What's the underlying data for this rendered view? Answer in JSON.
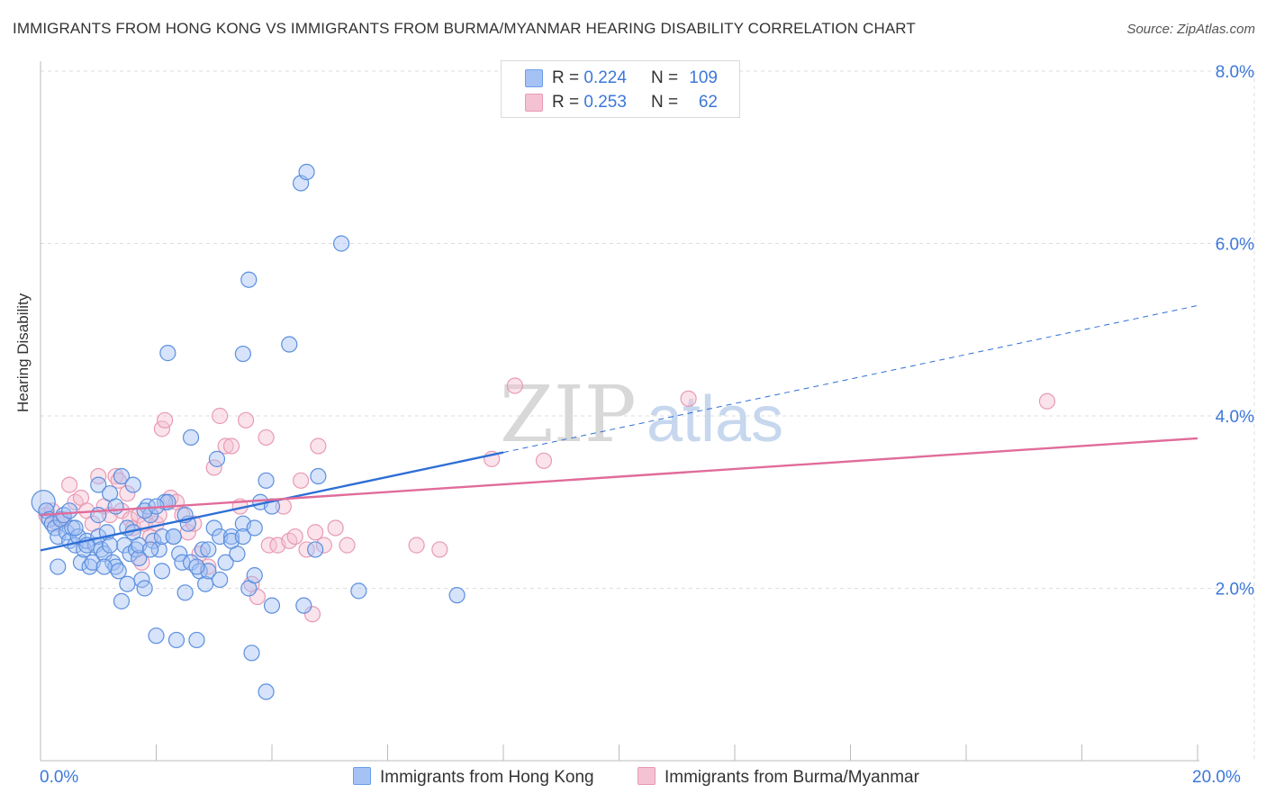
{
  "title": "IMMIGRANTS FROM HONG KONG VS IMMIGRANTS FROM BURMA/MYANMAR HEARING DISABILITY CORRELATION CHART",
  "source": "Source: ZipAtlas.com",
  "watermark": {
    "zip": "ZIP",
    "atlas": "atlas"
  },
  "colors": {
    "blue": "#3c78d8",
    "blue_fill": "#a4c2f4",
    "pink": "#e06c9a",
    "pink_fill": "#f4b4c8",
    "grid": "#dddddd",
    "axis_text": "#3c78d8"
  },
  "legend": {
    "rows": [
      {
        "r_label": "R =",
        "r_value": "0.224",
        "n_label": "N =",
        "n_value": "109"
      },
      {
        "r_label": "R =",
        "r_value": "0.253",
        "n_label": "N =",
        "n_value": "62"
      }
    ]
  },
  "bottom_legend": {
    "series1": "Immigrants from Hong Kong",
    "series2": "Immigrants from Burma/Myanmar"
  },
  "chart_data": {
    "type": "scatter",
    "ylabel": "Hearing Disability",
    "xlabel": "",
    "xlim": [
      0,
      20
    ],
    "ylim": [
      0,
      8.0
    ],
    "x_tick_labels": [
      "0.0%",
      "20.0%"
    ],
    "y_ticks": [
      2,
      4,
      6,
      8
    ],
    "y_tick_labels": [
      "2.0%",
      "4.0%",
      "6.0%",
      "8.0%"
    ],
    "grid": true,
    "legend_position": "top-center",
    "series": [
      {
        "name": "Immigrants from Hong Kong",
        "color": "#3c78d8",
        "trend": {
          "x0": 0,
          "y0": 2.44,
          "x_solid_end": 8.0,
          "x1": 20,
          "y1": 5.28
        },
        "points": [
          [
            0.05,
            3.0
          ],
          [
            0.1,
            2.9
          ],
          [
            0.15,
            2.8
          ],
          [
            0.2,
            2.75
          ],
          [
            0.25,
            2.7
          ],
          [
            0.3,
            2.6
          ],
          [
            0.35,
            2.8
          ],
          [
            0.4,
            2.85
          ],
          [
            0.45,
            2.65
          ],
          [
            0.5,
            2.55
          ],
          [
            0.55,
            2.7
          ],
          [
            0.6,
            2.5
          ],
          [
            0.65,
            2.6
          ],
          [
            0.7,
            2.3
          ],
          [
            0.75,
            2.45
          ],
          [
            0.8,
            2.55
          ],
          [
            0.85,
            2.25
          ],
          [
            0.9,
            2.3
          ],
          [
            0.95,
            2.5
          ],
          [
            1.0,
            2.6
          ],
          [
            1.05,
            2.45
          ],
          [
            1.1,
            2.4
          ],
          [
            1.15,
            2.65
          ],
          [
            1.2,
            2.5
          ],
          [
            1.25,
            2.3
          ],
          [
            1.3,
            2.25
          ],
          [
            1.35,
            2.2
          ],
          [
            1.4,
            1.85
          ],
          [
            1.45,
            2.5
          ],
          [
            1.5,
            2.7
          ],
          [
            1.55,
            2.4
          ],
          [
            1.6,
            2.65
          ],
          [
            1.65,
            2.45
          ],
          [
            1.7,
            2.35
          ],
          [
            1.75,
            2.1
          ],
          [
            1.8,
            2.0
          ],
          [
            1.85,
            2.95
          ],
          [
            1.9,
            2.85
          ],
          [
            1.95,
            2.55
          ],
          [
            2.0,
            1.45
          ],
          [
            2.05,
            2.45
          ],
          [
            2.1,
            2.6
          ],
          [
            2.15,
            3.0
          ],
          [
            2.2,
            3.0
          ],
          [
            2.3,
            2.6
          ],
          [
            2.35,
            1.4
          ],
          [
            2.4,
            2.4
          ],
          [
            2.45,
            2.3
          ],
          [
            2.5,
            1.95
          ],
          [
            2.55,
            2.75
          ],
          [
            2.6,
            2.3
          ],
          [
            2.7,
            1.4
          ],
          [
            2.75,
            2.2
          ],
          [
            2.8,
            2.45
          ],
          [
            2.85,
            2.05
          ],
          [
            2.9,
            2.2
          ],
          [
            3.0,
            2.7
          ],
          [
            3.1,
            2.6
          ],
          [
            3.2,
            2.3
          ],
          [
            3.3,
            2.6
          ],
          [
            3.4,
            2.4
          ],
          [
            3.5,
            2.75
          ],
          [
            3.6,
            2.0
          ],
          [
            3.7,
            2.15
          ],
          [
            3.8,
            3.0
          ],
          [
            3.9,
            3.25
          ],
          [
            4.0,
            1.8
          ],
          [
            1.0,
            3.2
          ],
          [
            1.2,
            3.1
          ],
          [
            1.4,
            3.3
          ],
          [
            1.6,
            3.2
          ],
          [
            1.8,
            2.9
          ],
          [
            2.0,
            2.95
          ],
          [
            2.2,
            4.73
          ],
          [
            2.6,
            3.75
          ],
          [
            3.05,
            3.5
          ],
          [
            3.5,
            4.72
          ],
          [
            3.6,
            5.58
          ],
          [
            4.3,
            4.83
          ],
          [
            4.5,
            6.7
          ],
          [
            4.6,
            6.83
          ],
          [
            4.8,
            3.3
          ],
          [
            5.2,
            6.0
          ],
          [
            5.5,
            1.97
          ],
          [
            7.2,
            1.92
          ],
          [
            4.55,
            1.8
          ],
          [
            4.75,
            2.45
          ],
          [
            3.9,
            0.8
          ],
          [
            3.65,
            1.25
          ],
          [
            0.3,
            2.25
          ],
          [
            0.5,
            2.9
          ],
          [
            0.6,
            2.7
          ],
          [
            0.8,
            2.5
          ],
          [
            1.0,
            2.85
          ],
          [
            1.1,
            2.25
          ],
          [
            1.3,
            2.95
          ],
          [
            1.5,
            2.05
          ],
          [
            1.7,
            2.5
          ],
          [
            1.9,
            2.45
          ],
          [
            2.1,
            2.2
          ],
          [
            2.3,
            2.6
          ],
          [
            2.5,
            2.85
          ],
          [
            2.7,
            2.25
          ],
          [
            2.9,
            2.45
          ],
          [
            3.1,
            2.1
          ],
          [
            3.3,
            2.55
          ],
          [
            3.5,
            2.6
          ],
          [
            3.7,
            2.7
          ],
          [
            4.0,
            2.95
          ]
        ]
      },
      {
        "name": "Immigrants from Burma/Myanmar",
        "color": "#e06c9a",
        "trend": {
          "x0": 0,
          "y0": 2.85,
          "x1": 20,
          "y1": 3.74
        },
        "points": [
          [
            0.1,
            2.85
          ],
          [
            0.2,
            2.9
          ],
          [
            0.3,
            2.75
          ],
          [
            0.4,
            2.8
          ],
          [
            0.5,
            3.2
          ],
          [
            0.6,
            3.0
          ],
          [
            0.7,
            3.05
          ],
          [
            0.8,
            2.9
          ],
          [
            0.9,
            2.75
          ],
          [
            1.0,
            3.3
          ],
          [
            1.1,
            2.95
          ],
          [
            1.2,
            2.85
          ],
          [
            1.3,
            3.3
          ],
          [
            1.35,
            3.25
          ],
          [
            1.4,
            2.9
          ],
          [
            1.5,
            3.1
          ],
          [
            1.55,
            2.8
          ],
          [
            1.6,
            2.7
          ],
          [
            1.7,
            2.85
          ],
          [
            1.75,
            2.3
          ],
          [
            1.8,
            2.75
          ],
          [
            1.9,
            2.6
          ],
          [
            2.0,
            2.75
          ],
          [
            2.05,
            2.85
          ],
          [
            2.1,
            3.85
          ],
          [
            2.15,
            3.95
          ],
          [
            2.25,
            3.05
          ],
          [
            2.35,
            3.0
          ],
          [
            2.45,
            2.85
          ],
          [
            2.55,
            2.65
          ],
          [
            2.65,
            2.75
          ],
          [
            2.75,
            2.4
          ],
          [
            2.9,
            2.25
          ],
          [
            3.0,
            3.4
          ],
          [
            3.1,
            4.0
          ],
          [
            3.2,
            3.65
          ],
          [
            3.3,
            3.65
          ],
          [
            3.45,
            2.95
          ],
          [
            3.55,
            3.95
          ],
          [
            3.65,
            2.05
          ],
          [
            3.75,
            1.9
          ],
          [
            3.9,
            3.75
          ],
          [
            3.95,
            2.5
          ],
          [
            4.1,
            2.5
          ],
          [
            4.2,
            2.95
          ],
          [
            4.3,
            2.55
          ],
          [
            4.4,
            2.6
          ],
          [
            4.5,
            3.25
          ],
          [
            4.6,
            2.45
          ],
          [
            4.75,
            2.65
          ],
          [
            4.8,
            3.65
          ],
          [
            4.9,
            2.5
          ],
          [
            5.1,
            2.7
          ],
          [
            5.3,
            2.5
          ],
          [
            4.7,
            1.7
          ],
          [
            6.5,
            2.5
          ],
          [
            6.9,
            2.45
          ],
          [
            7.8,
            3.5
          ],
          [
            8.2,
            4.35
          ],
          [
            8.7,
            3.48
          ],
          [
            11.2,
            4.2
          ],
          [
            17.4,
            4.17
          ]
        ]
      }
    ]
  }
}
